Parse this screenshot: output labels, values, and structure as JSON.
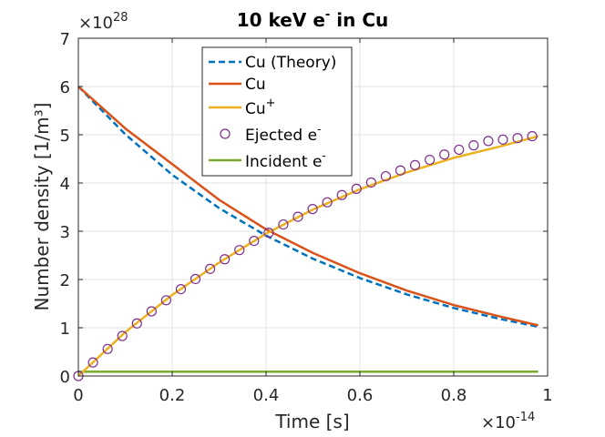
{
  "chart_data": {
    "type": "line",
    "title": {
      "main": "10 keV e",
      "sup": "-",
      "rest": " in Cu"
    },
    "xlabel": "Time [s]",
    "ylabel": "Number density [1/m³]",
    "xlim": [
      0,
      1
    ],
    "ylim": [
      0,
      7
    ],
    "x_ticks": [
      "0",
      "0.2",
      "0.4",
      "0.6",
      "0.8",
      "1"
    ],
    "y_ticks": [
      "0",
      "1",
      "2",
      "3",
      "4",
      "5",
      "6",
      "7"
    ],
    "x_exponent": {
      "base": "×10",
      "power": "-14"
    },
    "y_exponent": {
      "base": "×10",
      "power": "28"
    },
    "grid": true,
    "legend_position": "top-center",
    "legend": [
      {
        "label": "Cu (Theory)",
        "sup": ""
      },
      {
        "label": "Cu",
        "sup": ""
      },
      {
        "label": "Cu",
        "sup": "+"
      },
      {
        "label": "Ejected e",
        "sup": "-"
      },
      {
        "label": "Incident e",
        "sup": "-"
      }
    ],
    "series": [
      {
        "name": "Cu (Theory)",
        "color": "#0072BD",
        "style": "dashed",
        "x": [
          0,
          0.1,
          0.2,
          0.3,
          0.4,
          0.5,
          0.6,
          0.7,
          0.8,
          0.9,
          0.98
        ],
        "y": [
          6.0,
          5.01,
          4.17,
          3.48,
          2.91,
          2.43,
          2.03,
          1.69,
          1.41,
          1.18,
          1.02
        ]
      },
      {
        "name": "Cu",
        "color": "#D95319",
        "style": "solid",
        "x": [
          0,
          0.1,
          0.2,
          0.3,
          0.4,
          0.5,
          0.6,
          0.7,
          0.8,
          0.9,
          0.98
        ],
        "y": [
          6.0,
          5.13,
          4.39,
          3.65,
          3.04,
          2.55,
          2.13,
          1.77,
          1.47,
          1.23,
          1.05
        ]
      },
      {
        "name": "Cu+",
        "color": "#EDB120",
        "style": "solid",
        "x": [
          0,
          0.1,
          0.2,
          0.3,
          0.4,
          0.5,
          0.6,
          0.7,
          0.8,
          0.9,
          0.98
        ],
        "y": [
          0,
          0.91,
          1.68,
          2.35,
          2.95,
          3.45,
          3.87,
          4.22,
          4.52,
          4.76,
          4.97
        ]
      },
      {
        "name": "Ejected e-",
        "color": "#7E2F8E",
        "style": "markers",
        "x": [
          0,
          0.0312,
          0.0624,
          0.0936,
          0.1248,
          0.156,
          0.1872,
          0.2184,
          0.2496,
          0.2808,
          0.312,
          0.3432,
          0.3744,
          0.4056,
          0.4368,
          0.468,
          0.4992,
          0.5304,
          0.5616,
          0.5928,
          0.624,
          0.6552,
          0.6864,
          0.7176,
          0.7488,
          0.78,
          0.8112,
          0.8424,
          0.8736,
          0.9048,
          0.936,
          0.9672
        ],
        "y": [
          0,
          0.28,
          0.56,
          0.83,
          1.09,
          1.34,
          1.57,
          1.8,
          2.01,
          2.22,
          2.42,
          2.61,
          2.8,
          2.97,
          3.14,
          3.3,
          3.46,
          3.6,
          3.75,
          3.88,
          4.01,
          4.14,
          4.26,
          4.37,
          4.48,
          4.59,
          4.69,
          4.78,
          4.87,
          4.9,
          4.93,
          4.97
        ]
      },
      {
        "name": "Incident e-",
        "color": "#77AC30",
        "style": "solid",
        "x": [
          0,
          0.98
        ],
        "y": [
          0.09,
          0.09
        ]
      }
    ]
  }
}
